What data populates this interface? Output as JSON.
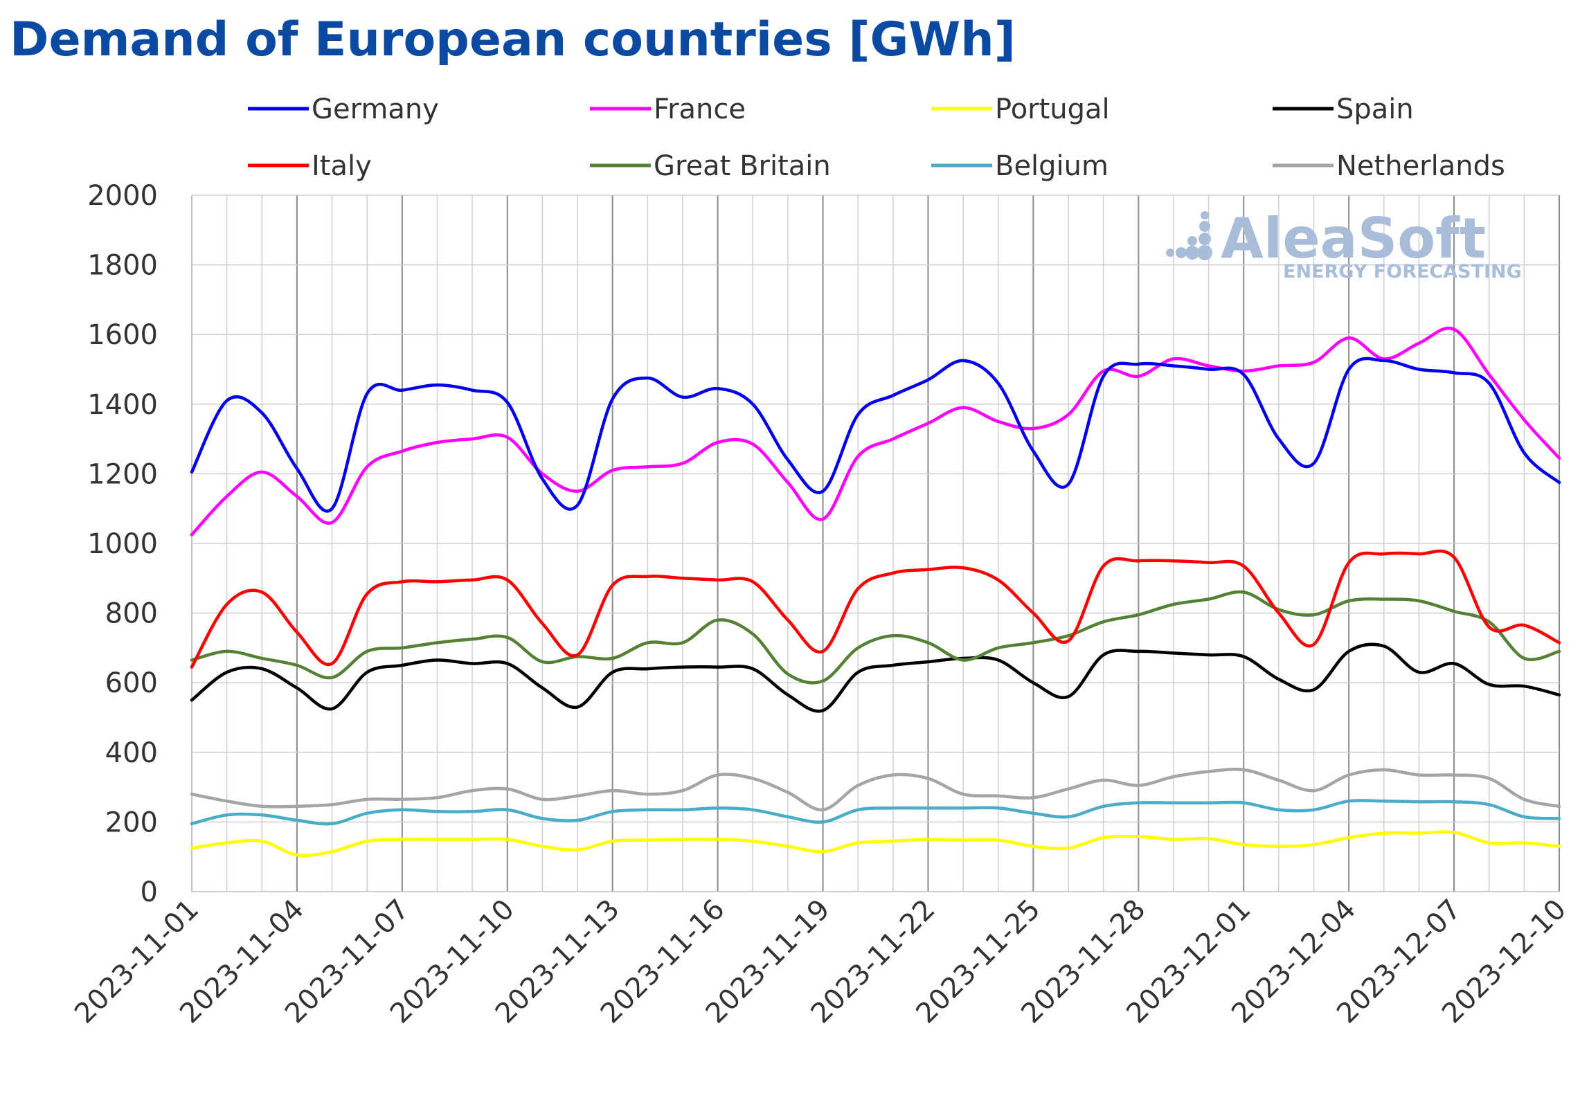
{
  "chart_data": {
    "type": "line",
    "title": "Demand of European countries [GWh]",
    "xlabel": "",
    "ylabel": "",
    "ylim": [
      0,
      2000
    ],
    "yticks": [
      0,
      200,
      400,
      600,
      800,
      1000,
      1200,
      1400,
      1600,
      1800,
      2000
    ],
    "grid": true,
    "legend_position": "top",
    "x_tick_labels": [
      "2023-11-01",
      "2023-11-04",
      "2023-11-07",
      "2023-11-10",
      "2023-11-13",
      "2023-11-16",
      "2023-11-19",
      "2023-11-22",
      "2023-11-25",
      "2023-11-28",
      "2023-12-01",
      "2023-12-04",
      "2023-12-07",
      "2023-12-10"
    ],
    "x": [
      "2023-11-01",
      "2023-11-02",
      "2023-11-03",
      "2023-11-04",
      "2023-11-05",
      "2023-11-06",
      "2023-11-07",
      "2023-11-08",
      "2023-11-09",
      "2023-11-10",
      "2023-11-11",
      "2023-11-12",
      "2023-11-13",
      "2023-11-14",
      "2023-11-15",
      "2023-11-16",
      "2023-11-17",
      "2023-11-18",
      "2023-11-19",
      "2023-11-20",
      "2023-11-21",
      "2023-11-22",
      "2023-11-23",
      "2023-11-24",
      "2023-11-25",
      "2023-11-26",
      "2023-11-27",
      "2023-11-28",
      "2023-11-29",
      "2023-11-30",
      "2023-12-01",
      "2023-12-02",
      "2023-12-03",
      "2023-12-04",
      "2023-12-05",
      "2023-12-06",
      "2023-12-07",
      "2023-12-08",
      "2023-12-09",
      "2023-12-10"
    ],
    "series": [
      {
        "name": "Germany",
        "color": "#0000ee",
        "values": [
          1205,
          1410,
          1375,
          1215,
          1100,
          1430,
          1440,
          1455,
          1440,
          1405,
          1185,
          1110,
          1415,
          1475,
          1420,
          1445,
          1400,
          1240,
          1150,
          1370,
          1425,
          1470,
          1525,
          1460,
          1265,
          1170,
          1480,
          1515,
          1510,
          1500,
          1485,
          1300,
          1230,
          1500,
          1525,
          1500,
          1490,
          1460,
          1260,
          1175
        ]
      },
      {
        "name": "France",
        "color": "#ff00ff",
        "values": [
          1025,
          1135,
          1205,
          1135,
          1060,
          1220,
          1265,
          1290,
          1300,
          1305,
          1200,
          1150,
          1210,
          1220,
          1230,
          1290,
          1285,
          1175,
          1070,
          1250,
          1300,
          1345,
          1390,
          1350,
          1330,
          1370,
          1495,
          1480,
          1530,
          1510,
          1495,
          1510,
          1520,
          1590,
          1530,
          1575,
          1615,
          1485,
          1355,
          1245
        ]
      },
      {
        "name": "Portugal",
        "color": "#ffff00",
        "values": [
          125,
          140,
          145,
          105,
          115,
          145,
          150,
          150,
          150,
          150,
          130,
          120,
          145,
          148,
          150,
          150,
          145,
          130,
          115,
          140,
          145,
          150,
          148,
          148,
          130,
          125,
          155,
          158,
          150,
          152,
          135,
          130,
          135,
          155,
          168,
          168,
          170,
          140,
          140,
          130
        ]
      },
      {
        "name": "Spain",
        "color": "#000000",
        "values": [
          550,
          630,
          640,
          585,
          525,
          630,
          650,
          665,
          655,
          655,
          585,
          530,
          630,
          640,
          645,
          645,
          640,
          565,
          520,
          630,
          650,
          660,
          670,
          665,
          600,
          560,
          680,
          690,
          685,
          680,
          675,
          610,
          580,
          690,
          705,
          630,
          655,
          595,
          590,
          565
        ]
      },
      {
        "name": "Italy",
        "color": "#ff0000",
        "values": [
          645,
          825,
          860,
          745,
          655,
          855,
          890,
          890,
          895,
          895,
          770,
          680,
          880,
          905,
          900,
          895,
          890,
          780,
          690,
          870,
          915,
          925,
          930,
          895,
          800,
          720,
          935,
          950,
          950,
          945,
          935,
          800,
          710,
          945,
          970,
          970,
          960,
          760,
          765,
          715
        ]
      },
      {
        "name": "Great Britain",
        "color": "#548235",
        "values": [
          665,
          690,
          670,
          650,
          615,
          690,
          700,
          715,
          725,
          730,
          660,
          675,
          670,
          715,
          715,
          780,
          740,
          625,
          605,
          700,
          735,
          715,
          665,
          700,
          715,
          735,
          775,
          795,
          825,
          840,
          860,
          810,
          795,
          835,
          840,
          835,
          805,
          775,
          670,
          690
        ]
      },
      {
        "name": "Belgium",
        "color": "#4bacc6",
        "values": [
          195,
          220,
          220,
          205,
          195,
          225,
          235,
          230,
          230,
          235,
          210,
          205,
          230,
          235,
          235,
          240,
          235,
          215,
          200,
          235,
          240,
          240,
          240,
          240,
          225,
          215,
          245,
          255,
          255,
          255,
          255,
          235,
          235,
          260,
          260,
          258,
          258,
          250,
          215,
          210
        ]
      },
      {
        "name": "Netherlands",
        "color": "#a5a5a5",
        "values": [
          280,
          260,
          245,
          245,
          250,
          265,
          265,
          270,
          290,
          295,
          265,
          275,
          290,
          280,
          290,
          335,
          325,
          285,
          235,
          305,
          335,
          325,
          280,
          275,
          270,
          295,
          320,
          305,
          330,
          345,
          350,
          320,
          290,
          335,
          350,
          335,
          335,
          325,
          265,
          245
        ]
      }
    ]
  },
  "watermark": {
    "brand": "AleaSoft",
    "tagline": "ENERGY FORECASTING"
  }
}
